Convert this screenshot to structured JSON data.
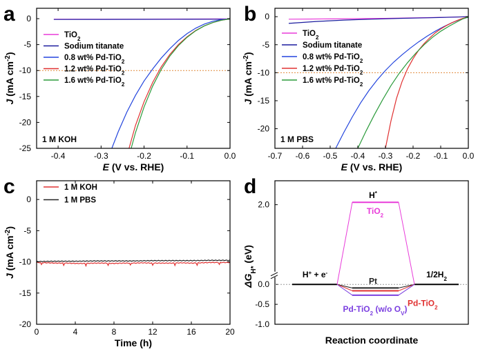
{
  "chart_data": [
    {
      "panel": "a",
      "type": "line",
      "xlabel": {
        "sym": "E",
        "rest": " (V vs. RHE)"
      },
      "ylabel": {
        "sym": "J",
        "rest": " (mA cm",
        "sup": "-2",
        "close": ")"
      },
      "xlim": [
        -0.45,
        0.0
      ],
      "ylim": [
        -25,
        2
      ],
      "xticks": [
        -0.4,
        -0.3,
        -0.2,
        -0.1,
        0.0
      ],
      "xtick_labels": [
        "-0.4",
        "-0.3",
        "-0.2",
        "-0.1",
        "0.0"
      ],
      "yticks": [
        0,
        -5,
        -10,
        -15,
        -20,
        -25
      ],
      "ytick_labels": [
        "0",
        "-5",
        "-10",
        "-15",
        "-20",
        "-25"
      ],
      "hline": -10,
      "annotation": "1 M KOH",
      "series": [
        {
          "name": {
            "main": "TiO",
            "sub": "2",
            "tail": ""
          },
          "color": "#e83ad9",
          "x": [
            -0.41,
            -0.3,
            -0.2,
            -0.1,
            0.0
          ],
          "y": [
            -0.1,
            -0.1,
            -0.1,
            -0.08,
            -0.05
          ]
        },
        {
          "name": {
            "main": "Sodium titanate",
            "sub": "",
            "tail": ""
          },
          "color": "#1a1a9e",
          "x": [
            -0.41,
            -0.3,
            -0.2,
            -0.1,
            0.0
          ],
          "y": [
            -0.15,
            -0.14,
            -0.13,
            -0.12,
            -0.1
          ]
        },
        {
          "name": {
            "main": "0.8 wt% Pd-TiO",
            "sub": "2",
            "tail": ""
          },
          "color": "#2244dd",
          "x": [
            -0.275,
            -0.26,
            -0.24,
            -0.22,
            -0.2,
            -0.18,
            -0.16,
            -0.14,
            -0.12,
            -0.1,
            -0.08,
            -0.06,
            -0.04,
            -0.02,
            0.0
          ],
          "y": [
            -25,
            -21.8,
            -18.0,
            -14.8,
            -12.0,
            -9.7,
            -7.6,
            -5.8,
            -4.2,
            -2.9,
            -1.85,
            -1.05,
            -0.5,
            -0.2,
            -0.05
          ]
        },
        {
          "name": {
            "main": "1.2 wt% Pd-TiO",
            "sub": "2",
            "tail": ""
          },
          "color": "#e03030",
          "x": [
            -0.235,
            -0.22,
            -0.2,
            -0.18,
            -0.16,
            -0.14,
            -0.12,
            -0.1,
            -0.08,
            -0.06,
            -0.04,
            -0.02,
            0.0
          ],
          "y": [
            -25,
            -20.6,
            -16.0,
            -12.3,
            -9.3,
            -6.9,
            -5.0,
            -3.5,
            -2.3,
            -1.4,
            -0.75,
            -0.3,
            -0.05
          ]
        },
        {
          "name": {
            "main": "1.6 wt% Pd-TiO",
            "sub": "2",
            "tail": ""
          },
          "color": "#2a9a3a",
          "x": [
            -0.23,
            -0.22,
            -0.2,
            -0.18,
            -0.16,
            -0.14,
            -0.12,
            -0.1,
            -0.08,
            -0.06,
            -0.04,
            -0.02,
            0.0
          ],
          "y": [
            -25,
            -22.0,
            -17.0,
            -13.0,
            -9.8,
            -7.2,
            -5.2,
            -3.6,
            -2.35,
            -1.4,
            -0.75,
            -0.3,
            -0.05
          ]
        }
      ]
    },
    {
      "panel": "b",
      "type": "line",
      "xlabel": {
        "sym": "E",
        "rest": " (V vs. RHE)"
      },
      "ylabel": {
        "sym": "J",
        "rest": " (mA cm",
        "sup": "-2",
        "close": ")"
      },
      "xlim": [
        -0.7,
        0.0
      ],
      "ylim": [
        -23.5,
        1.5
      ],
      "xticks": [
        -0.7,
        -0.6,
        -0.5,
        -0.4,
        -0.3,
        -0.2,
        -0.1,
        0.0
      ],
      "xtick_labels": [
        "-0.7",
        "-0.6",
        "-0.5",
        "-0.4",
        "-0.3",
        "-0.2",
        "-0.1",
        "0.0"
      ],
      "yticks": [
        0,
        -5,
        -10,
        -15,
        -20
      ],
      "ytick_labels": [
        "0",
        "-5",
        "-10",
        "-15",
        "-20"
      ],
      "hline": -10,
      "annotation": "1 M PBS",
      "series": [
        {
          "name": {
            "main": "TiO",
            "sub": "2",
            "tail": ""
          },
          "color": "#e83ad9",
          "x": [
            -0.65,
            -0.5,
            -0.3,
            -0.1,
            0.0
          ],
          "y": [
            -0.45,
            -0.4,
            -0.3,
            -0.12,
            0.0
          ]
        },
        {
          "name": {
            "main": "Sodium titanate",
            "sub": "",
            "tail": ""
          },
          "color": "#1a1a9e",
          "x": [
            -0.65,
            -0.55,
            -0.45,
            -0.35,
            -0.25,
            -0.15,
            -0.05,
            0.0
          ],
          "y": [
            -1.2,
            -0.85,
            -0.6,
            -0.45,
            -0.3,
            -0.2,
            -0.08,
            0.0
          ]
        },
        {
          "name": {
            "main": "0.8 wt% Pd-TiO",
            "sub": "2",
            "tail": ""
          },
          "color": "#2244dd",
          "x": [
            -0.48,
            -0.45,
            -0.42,
            -0.39,
            -0.36,
            -0.33,
            -0.3,
            -0.27,
            -0.24,
            -0.21,
            -0.18,
            -0.15,
            -0.12,
            -0.09,
            -0.06,
            -0.03,
            0.0
          ],
          "y": [
            -23.5,
            -20.6,
            -17.9,
            -15.4,
            -13.2,
            -11.3,
            -9.6,
            -8.1,
            -6.8,
            -5.6,
            -4.5,
            -3.5,
            -2.6,
            -1.8,
            -1.1,
            -0.5,
            -0.1
          ]
        },
        {
          "name": {
            "main": "1.2 wt% Pd-TiO",
            "sub": "2",
            "tail": ""
          },
          "color": "#e03030",
          "x": [
            -0.3,
            -0.28,
            -0.26,
            -0.24,
            -0.22,
            -0.2,
            -0.18,
            -0.16,
            -0.14,
            -0.12,
            -0.1,
            -0.08,
            -0.06,
            -0.04,
            -0.02,
            0.0
          ],
          "y": [
            -23.5,
            -18.6,
            -14.6,
            -11.6,
            -9.3,
            -7.5,
            -6.0,
            -4.8,
            -3.8,
            -2.9,
            -2.2,
            -1.6,
            -1.1,
            -0.65,
            -0.3,
            -0.05
          ]
        },
        {
          "name": {
            "main": "1.6 wt% Pd-TiO",
            "sub": "2",
            "tail": ""
          },
          "color": "#2a9a3a",
          "x": [
            -0.4,
            -0.37,
            -0.34,
            -0.31,
            -0.28,
            -0.25,
            -0.22,
            -0.19,
            -0.16,
            -0.13,
            -0.1,
            -0.07,
            -0.04,
            -0.02,
            0.0
          ],
          "y": [
            -23.5,
            -20.4,
            -17.5,
            -14.8,
            -12.3,
            -10.1,
            -8.2,
            -6.5,
            -5.0,
            -3.7,
            -2.6,
            -1.7,
            -0.9,
            -0.4,
            -0.05
          ]
        }
      ]
    },
    {
      "panel": "c",
      "type": "line",
      "xlabel": {
        "sym": "",
        "rest": "Time (h)"
      },
      "ylabel": {
        "sym": "J",
        "rest": " (mA cm",
        "sup": "-2",
        "close": ")"
      },
      "xlim": [
        0,
        20
      ],
      "ylim": [
        -20,
        3
      ],
      "xticks": [
        0,
        4,
        8,
        12,
        16,
        20
      ],
      "xtick_labels": [
        "0",
        "4",
        "8",
        "12",
        "16",
        "20"
      ],
      "yticks": [
        0,
        -5,
        -10,
        -15,
        -20
      ],
      "ytick_labels": [
        "0",
        "-5",
        "-10",
        "-15",
        "-20"
      ],
      "series": [
        {
          "name": {
            "main": "1 M KOH",
            "sub": "",
            "tail": ""
          },
          "color": "#e03030",
          "x": [
            0,
            1,
            2,
            3,
            4,
            5,
            6,
            7,
            8,
            9,
            10,
            11,
            12,
            13,
            14,
            15,
            16,
            17,
            18,
            19,
            20
          ],
          "y": [
            -10.1,
            -10.15,
            -10.2,
            -10.2,
            -10.25,
            -10.25,
            -10.2,
            -10.2,
            -10.25,
            -10.2,
            -10.2,
            -10.15,
            -10.2,
            -10.2,
            -10.2,
            -10.15,
            -10.2,
            -10.15,
            -10.1,
            -10.1,
            -10.1
          ]
        },
        {
          "name": {
            "main": "1 M PBS",
            "sub": "",
            "tail": ""
          },
          "color": "#222222",
          "x": [
            0,
            2,
            4,
            6,
            8,
            10,
            12,
            14,
            16,
            18,
            20
          ],
          "y": [
            -9.95,
            -9.9,
            -9.9,
            -9.85,
            -9.85,
            -9.85,
            -9.8,
            -9.8,
            -9.8,
            -9.75,
            -9.75
          ]
        }
      ]
    },
    {
      "panel": "d",
      "type": "diagram",
      "xlabel": {
        "sym": "",
        "rest": "Reaction coordinate"
      },
      "ylabel": {
        "sym": "ΔG",
        "sub": "H*",
        "rest": " (eV)"
      },
      "ylim": [
        -1.0,
        2.6
      ],
      "yticks": [
        0.0,
        -0.5,
        -1.0,
        2.0
      ],
      "ytick_labels": [
        "0.0",
        "-0.5",
        "-1.0",
        "2.0"
      ],
      "initial_label": {
        "main": "H",
        "sup": "+",
        "mid": " + e",
        "sup2": "-"
      },
      "final_label": {
        "main": "1/2H",
        "sub": "2"
      },
      "intermediate_label": {
        "main": "H",
        "sup": "*"
      },
      "levels": [
        {
          "name": {
            "main": "TiO",
            "sub": "2",
            "tail": ""
          },
          "value": 2.06,
          "color": "#e83ad9"
        },
        {
          "name": {
            "main": "Pt",
            "sub": "",
            "tail": ""
          },
          "value": -0.09,
          "color": "#222222"
        },
        {
          "name": {
            "main": "Pd-TiO",
            "sub": "2",
            "tail": ""
          },
          "value": -0.16,
          "color": "#e03030"
        },
        {
          "name": {
            "main": "Pd-TiO",
            "sub": "2",
            "tail": " (w/o O",
            "sub2": "V",
            "tail2": ")"
          },
          "value": -0.27,
          "color": "#7b3fe0"
        }
      ]
    }
  ]
}
